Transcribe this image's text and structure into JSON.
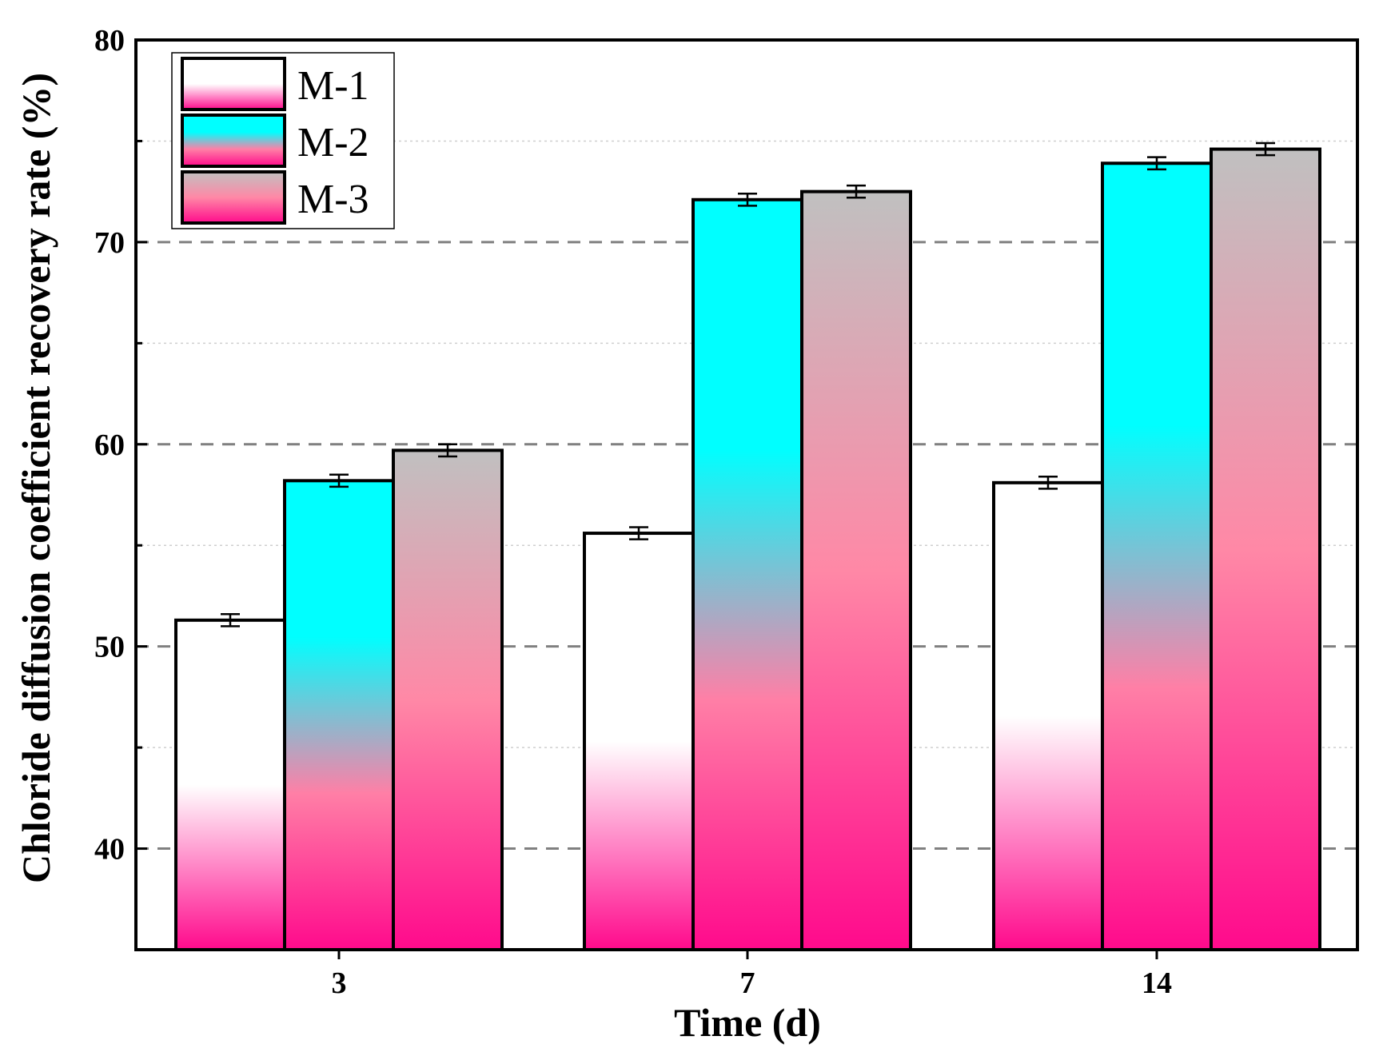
{
  "chart_data": {
    "type": "bar",
    "title": "",
    "xlabel": "Time (d)",
    "ylabel": "Chloride diffusion coefficient recovery rate  (%)",
    "categories": [
      "3",
      "7",
      "14"
    ],
    "ylim": [
      35,
      80
    ],
    "yticks": [
      40,
      50,
      60,
      70,
      80
    ],
    "ytick_labels": [
      "40",
      "50",
      "60",
      "70",
      "80"
    ],
    "grid": {
      "major": "dashed",
      "minor": "dotted"
    },
    "legend_position": "top-left",
    "series": [
      {
        "name": "M-1",
        "values": [
          51.3,
          55.6,
          58.1
        ],
        "errors": [
          0.3,
          0.3,
          0.3
        ],
        "gradient": [
          "#ffffff",
          "#ffffff",
          "#ff0a8c"
        ]
      },
      {
        "name": "M-2",
        "values": [
          58.2,
          72.1,
          73.9
        ],
        "errors": [
          0.3,
          0.3,
          0.3
        ],
        "gradient": [
          "#00ffff",
          "#00ffff",
          "#ff7fa6",
          "#ff0a8c"
        ]
      },
      {
        "name": "M-3",
        "values": [
          59.7,
          72.5,
          74.6
        ],
        "errors": [
          0.3,
          0.3,
          0.3
        ],
        "gradient": [
          "#c0c0c0",
          "#ff88a6",
          "#ff0a8c"
        ]
      }
    ]
  }
}
